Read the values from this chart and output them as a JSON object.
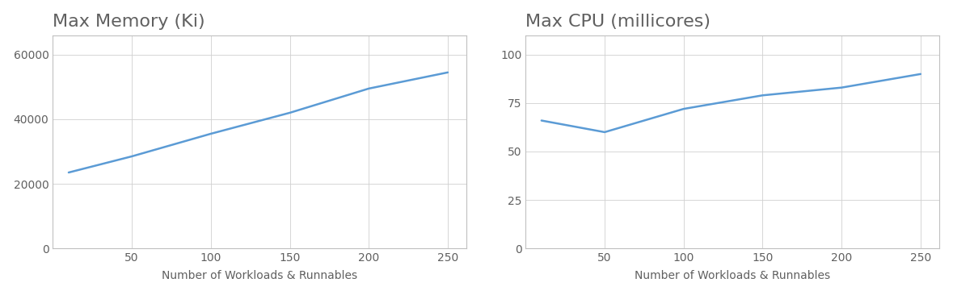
{
  "left": {
    "title": "Max Memory (Ki)",
    "xlabel": "Number of Workloads & Runnables",
    "x": [
      10,
      50,
      100,
      150,
      200,
      250
    ],
    "y": [
      23500,
      28500,
      35500,
      42000,
      49500,
      54500
    ],
    "xlim": [
      0,
      262
    ],
    "ylim": [
      0,
      66000
    ],
    "yticks": [
      0,
      20000,
      40000,
      60000
    ],
    "xticks": [
      50,
      100,
      150,
      200,
      250
    ],
    "line_color": "#5b9bd5",
    "grid_color": "#d0d0d0",
    "border_color": "#c0c0c0",
    "title_color": "#606060",
    "label_color": "#606060",
    "tick_color": "#606060",
    "bg_color": "#ffffff"
  },
  "right": {
    "title": "Max CPU (millicores)",
    "xlabel": "Number of Workloads & Runnables",
    "x": [
      10,
      50,
      100,
      150,
      200,
      250
    ],
    "y": [
      66,
      60,
      72,
      79,
      83,
      90
    ],
    "xlim": [
      0,
      262
    ],
    "ylim": [
      0,
      110
    ],
    "yticks": [
      0,
      25,
      50,
      75,
      100
    ],
    "xticks": [
      50,
      100,
      150,
      200,
      250
    ],
    "line_color": "#5b9bd5",
    "grid_color": "#d0d0d0",
    "border_color": "#c0c0c0",
    "title_color": "#606060",
    "label_color": "#606060",
    "tick_color": "#606060",
    "bg_color": "#ffffff"
  },
  "fig_bg_color": "#ffffff",
  "title_fontsize": 16,
  "label_fontsize": 10,
  "tick_fontsize": 10
}
